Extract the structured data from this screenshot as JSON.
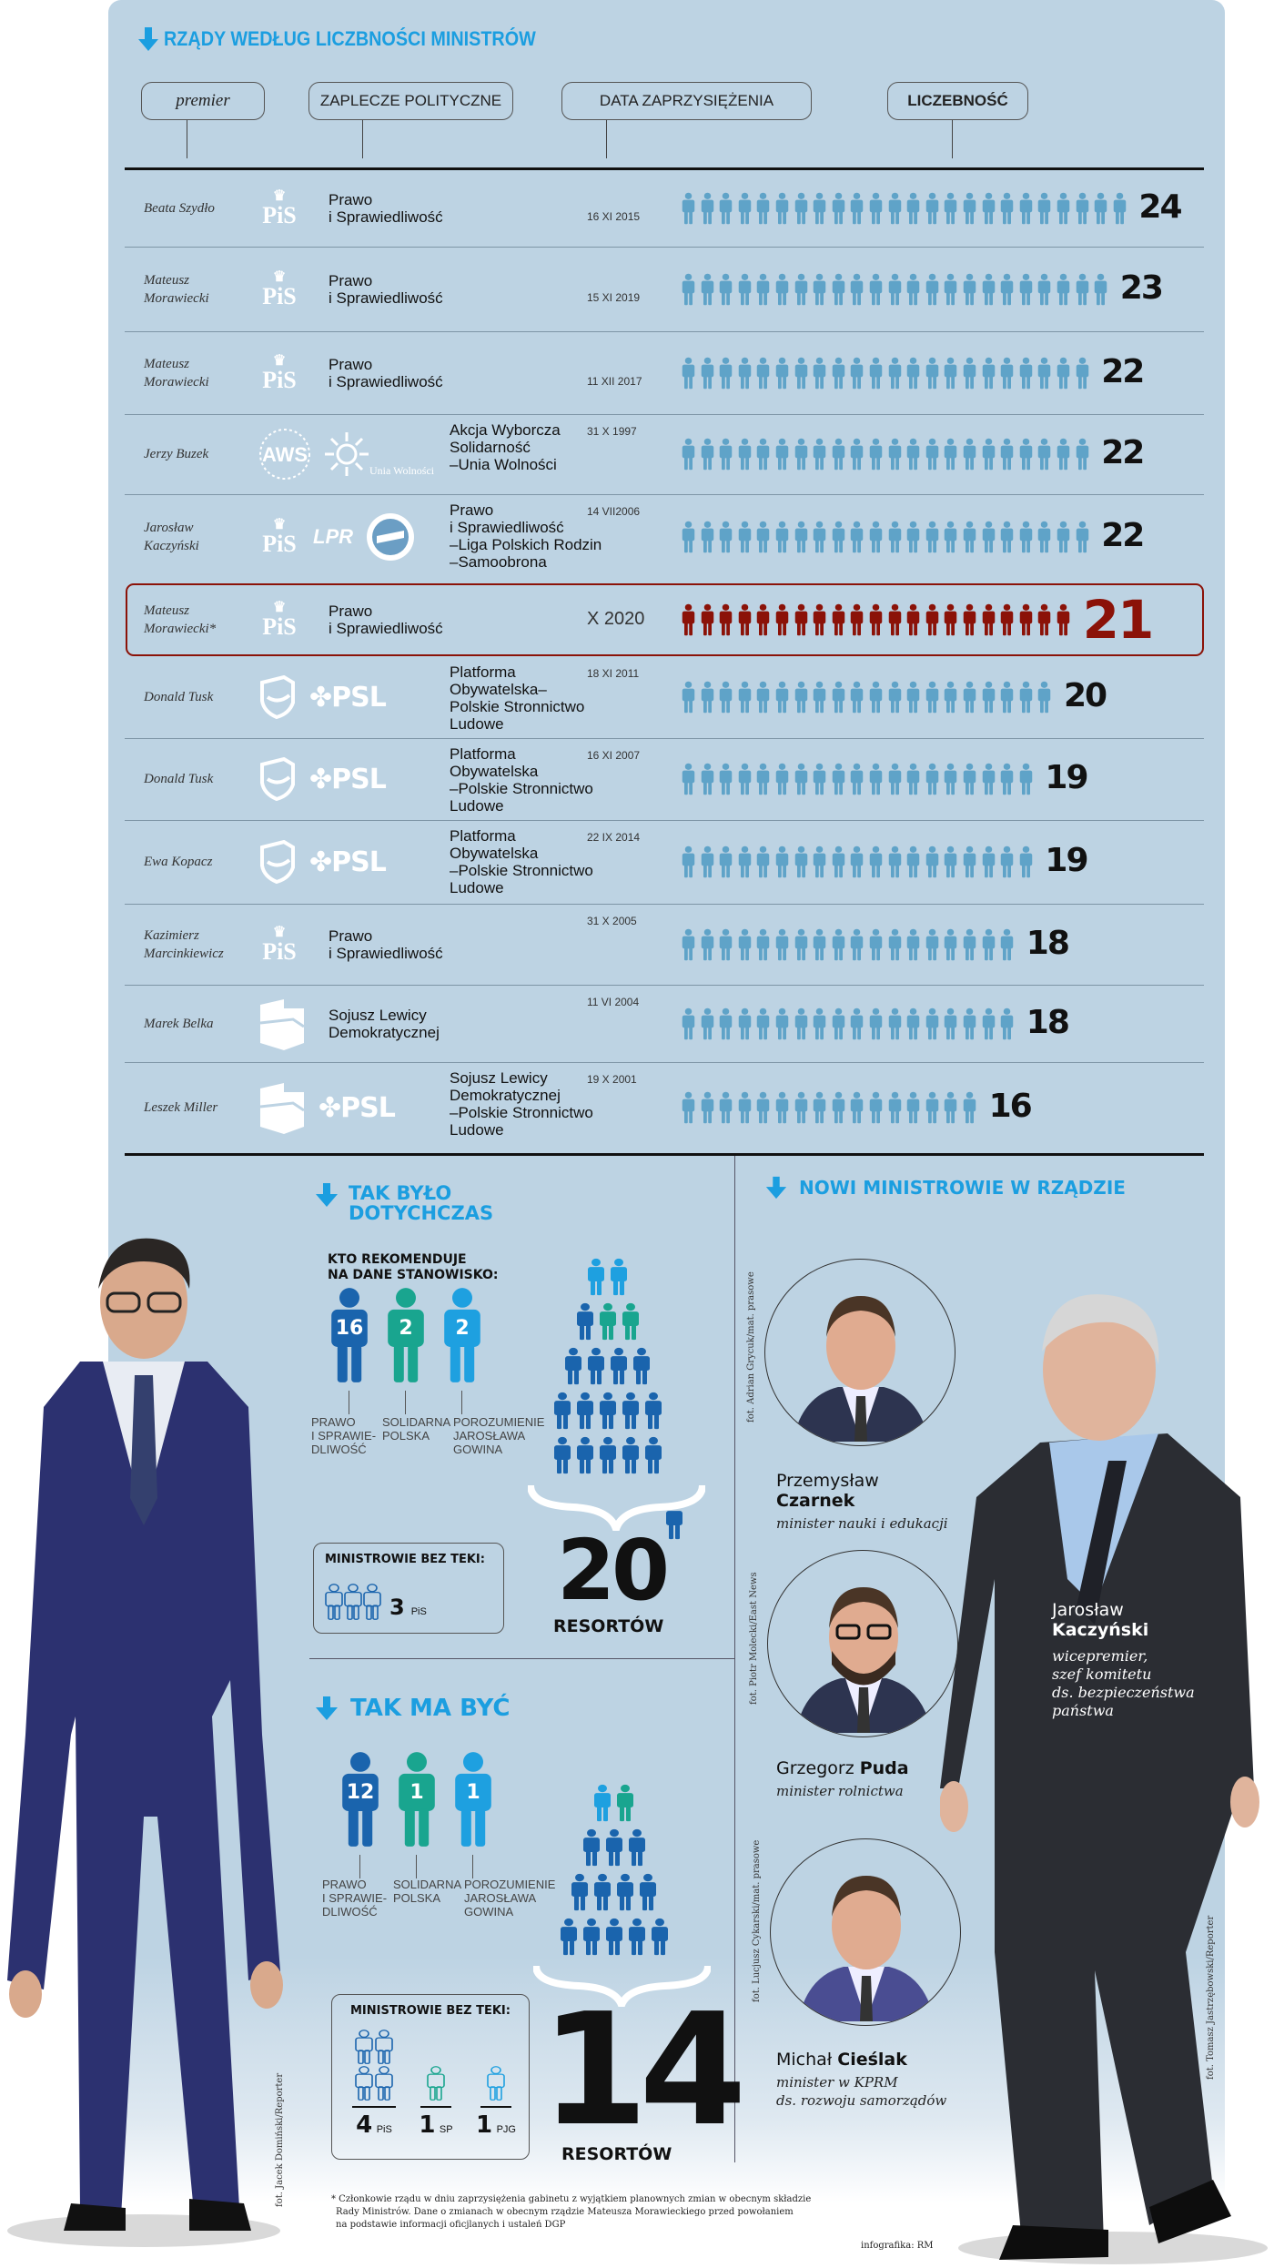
{
  "title": "RZĄDY WEDŁUG LICZBNOŚCI MINISTRÓW",
  "columns": {
    "premier": "premier",
    "party": "ZAPLECZE POLITYCZNE",
    "date": "DATA ZAPRZYSIĘŻENIA",
    "count": "LICZEBNOŚĆ"
  },
  "colors": {
    "icon": "#5fa3c8",
    "highlight": "#8b1208",
    "panel": "#bdd3e3",
    "accent": "#1b9ee0",
    "pis": "#1a64ad",
    "sp": "#19a58f",
    "pjg": "#1ea0e0"
  },
  "rows": [
    {
      "premier": [
        "Beata Szydło"
      ],
      "logos": [
        "PiS"
      ],
      "party": [
        "Prawo",
        "i Sprawiedliwość"
      ],
      "date": "16 XI 2015",
      "count": "24"
    },
    {
      "premier": [
        "Mateusz",
        "Morawiecki"
      ],
      "logos": [
        "PiS"
      ],
      "party": [
        "Prawo",
        "i Sprawiedliwość"
      ],
      "date": "15 XI 2019",
      "count": "23"
    },
    {
      "premier": [
        "Mateusz",
        "Morawiecki"
      ],
      "logos": [
        "PiS"
      ],
      "party": [
        "Prawo",
        "i Sprawiedliwość"
      ],
      "date": "11 XII 2017",
      "count": "22"
    },
    {
      "premier": [
        "Jerzy Buzek"
      ],
      "logos": [
        "AWS",
        "Unia Wolności"
      ],
      "party": [
        "Akcja Wyborcza",
        "Solidarność",
        "–Unia Wolności"
      ],
      "date": "31 X 1997",
      "count": "22"
    },
    {
      "premier": [
        "Jarosław",
        "Kaczyński"
      ],
      "logos": [
        "PiS",
        "LPR",
        "Samoobrona"
      ],
      "party": [
        "Prawo",
        "i Sprawiedliwość",
        "–Liga Polskich Rodzin",
        "–Samoobrona"
      ],
      "date": "14 VII2006",
      "count": "22"
    },
    {
      "premier": [
        "Mateusz",
        "Morawiecki*"
      ],
      "logos": [
        "PiS"
      ],
      "party": [
        "Prawo",
        "i Sprawiedliwość"
      ],
      "date": "X 2020",
      "count": "21",
      "highlight": true
    },
    {
      "premier": [
        "Donald Tusk"
      ],
      "logos": [
        "PO",
        "PSL"
      ],
      "party": [
        "Platforma",
        "Obywatelska–",
        "Polskie Stronnictwo",
        "Ludowe"
      ],
      "date": "18 XI 2011",
      "count": "20"
    },
    {
      "premier": [
        "Donald Tusk"
      ],
      "logos": [
        "PO",
        "PSL"
      ],
      "party": [
        "Platforma",
        "Obywatelska",
        "–Polskie Stronnictwo",
        "Ludowe"
      ],
      "date": "16 XI 2007",
      "count": "19"
    },
    {
      "premier": [
        "Ewa Kopacz"
      ],
      "logos": [
        "PO",
        "PSL"
      ],
      "party": [
        "Platforma",
        "Obywatelska",
        "–Polskie Stronnictwo",
        "Ludowe"
      ],
      "date": "22 IX 2014",
      "count": "19"
    },
    {
      "premier": [
        "Kazimierz",
        "Marcinkiewicz"
      ],
      "logos": [
        "PiS"
      ],
      "party": [
        "Prawo",
        "i Sprawiedliwość"
      ],
      "date": "31 X 2005",
      "count": "18"
    },
    {
      "premier": [
        "Marek Belka"
      ],
      "logos": [
        "SLD"
      ],
      "party": [
        "Sojusz Lewicy",
        "Demokratycznej"
      ],
      "date": "11 VI 2004",
      "count": "18"
    },
    {
      "premier": [
        "Leszek Miller"
      ],
      "logos": [
        "SLD",
        "PSL"
      ],
      "party": [
        "Sojusz Lewicy",
        "Demokratycznej",
        "–Polskie Stronnictwo",
        "Ludowe"
      ],
      "date": "19 X 2001",
      "count": "16"
    }
  ],
  "chart_data": {
    "type": "bar",
    "title": "RZĄDY WEDŁUG LICZBNOŚCI MINISTRÓW",
    "categories": [
      "Beata Szydło 16 XI 2015",
      "Mateusz Morawiecki 15 XI 2019",
      "Mateusz Morawiecki 11 XII 2017",
      "Jerzy Buzek 31 X 1997",
      "Jarosław Kaczyński 14 VII2006",
      "Mateusz Morawiecki* X 2020",
      "Donald Tusk 18 XI 2011",
      "Donald Tusk 16 XI 2007",
      "Ewa Kopacz 22 IX 2014",
      "Kazimierz Marcinkiewicz 31 X 2005",
      "Marek Belka 11 VI 2004",
      "Leszek Miller 19 X 2001"
    ],
    "values": [
      24,
      23,
      22,
      22,
      22,
      21,
      20,
      19,
      19,
      18,
      18,
      16
    ],
    "xlabel": "",
    "ylabel": "LICZEBNOŚĆ"
  },
  "before": {
    "title": [
      "TAK BYŁO",
      "DOTYCHCZAS"
    ],
    "subtitle": [
      "KTO REKOMENDUJE",
      "NA DANE STANOWISKO:"
    ],
    "groups": [
      {
        "value": "16",
        "party": "pis",
        "label": [
          "PRAWO",
          "I SPRAWIE-",
          "DLIWOŚĆ"
        ]
      },
      {
        "value": "2",
        "party": "sp",
        "label": [
          "SOLIDARNA",
          "POLSKA"
        ]
      },
      {
        "value": "2",
        "party": "pjg",
        "label": [
          "POROZUMIENIE",
          "JAROSŁAWA",
          "GOWINA"
        ]
      }
    ],
    "pyramid": [
      [
        "pjg",
        "pjg"
      ],
      [
        "pis",
        "sp",
        "sp"
      ],
      [
        "pis",
        "pis",
        "pis",
        "pis"
      ],
      [
        "pis",
        "pis",
        "pis",
        "pis",
        "pis"
      ],
      [
        "pis",
        "pis",
        "pis",
        "pis",
        "pis"
      ]
    ],
    "extra": [
      "pis"
    ],
    "total": "20",
    "total_label": "RESORTÓW",
    "bez_teki": {
      "title": "MINISTROWIE BEZ TEKI:",
      "items": [
        {
          "count": "3",
          "abbr": "PiS",
          "party": "pis"
        }
      ]
    }
  },
  "after": {
    "title": "TAK MA BYĆ",
    "groups": [
      {
        "value": "12",
        "party": "pis",
        "label": [
          "PRAWO",
          "I SPRAWIE-",
          "DLIWOŚĆ"
        ]
      },
      {
        "value": "1",
        "party": "sp",
        "label": [
          "SOLIDARNA",
          "POLSKA"
        ]
      },
      {
        "value": "1",
        "party": "pjg",
        "label": [
          "POROZUMIENIE",
          "JAROSŁAWA",
          "GOWINA"
        ]
      }
    ],
    "pyramid": [
      [
        "pjg",
        "sp"
      ],
      [
        "pis",
        "pis",
        "pis"
      ],
      [
        "pis",
        "pis",
        "pis",
        "pis"
      ],
      [
        "pis",
        "pis",
        "pis",
        "pis",
        "pis"
      ]
    ],
    "total": "14",
    "total_label": "RESORTÓW",
    "bez_teki": {
      "title": "MINISTROWIE BEZ TEKI:",
      "items": [
        {
          "count": "4",
          "abbr": "PiS",
          "party": "pis"
        },
        {
          "count": "1",
          "abbr": "SP",
          "party": "sp"
        },
        {
          "count": "1",
          "abbr": "PJG",
          "party": "pjg"
        }
      ]
    }
  },
  "new_ministers": {
    "title": "NOWI MINISTROWIE W RZĄDZIE",
    "people": [
      {
        "first": "Przemysław",
        "last": "Czarnek",
        "role": [
          "minister nauki i edukacji"
        ],
        "credit": "fot. Adrian Grycuk/mat. prasowe"
      },
      {
        "first": "Grzegorz",
        "last": "Puda",
        "role": [
          "minister rolnictwa"
        ],
        "credit": "fot. Piotr Molecki/East News"
      },
      {
        "first": "Michał",
        "last": "Cieślak",
        "role": [
          "minister w KPRM",
          "ds. rozwoju samorządów"
        ],
        "credit": "fot. Lucjusz Cykarski/mat. prasowe"
      }
    ],
    "feature": {
      "first": "Jarosław",
      "last": "Kaczyński",
      "role": [
        "wicepremier,",
        "szef komitetu",
        "ds. bezpieczeństwa",
        "państwa"
      ],
      "credit": "fot. Tomasz Jastrzębowski/Reporter"
    }
  },
  "morawiecki_credit": "fot. Jacek Domiński/Reporter",
  "footnote": [
    "* Członkowie rządu w dniu zaprzysiężenia gabinetu z wyjątkiem planownych zmian w obecnym składzie",
    "Rady Ministrów. Dane o zmianach w obecnym rządzie Mateusza Morawieckiego przed powołaniem",
    "na podstawie informacji oficjlanych i ustaleń DGP"
  ],
  "infographic_credit": "infografika: RM"
}
